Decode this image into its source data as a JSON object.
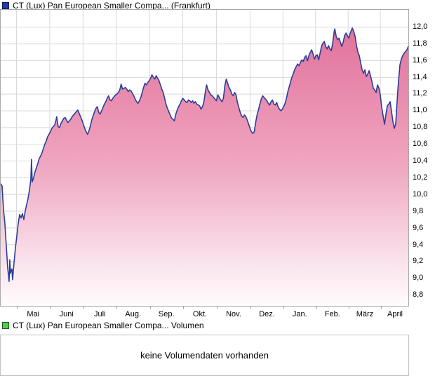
{
  "price_pane": {
    "legend": {
      "label": "CT (Lux) Pan European Smaller Compa... (Frankfurt)",
      "marker_color": "#1f3bad"
    },
    "y_axis": {
      "ticks": [
        "12,0",
        "11,8",
        "11,6",
        "11,4",
        "11,2",
        "11,0",
        "10,8",
        "10,6",
        "10,4",
        "10,2",
        "10,0",
        "9,8",
        "9,6",
        "9,4",
        "9,2",
        "9,0",
        "8,8"
      ]
    },
    "x_axis": {
      "labels": [
        "Mai",
        "Juni",
        "Juli",
        "Aug.",
        "Sep.",
        "Okt.",
        "Nov.",
        "Dez.",
        "Jan.",
        "Feb.",
        "März",
        "April"
      ]
    }
  },
  "volume_pane": {
    "legend": {
      "label": "CT (Lux) Pan European Smaller Compa... Volumen",
      "marker_color": "#58c858"
    },
    "message": "keine Volumendaten vorhanden"
  },
  "colors": {
    "line": "#2b3e99",
    "grid": "#d9d9d9",
    "border": "#a8a8a8",
    "fill_stops": [
      "#e2709b",
      "#efa6c0",
      "#fae3ec",
      "#fffcfd"
    ],
    "fill_offsets": [
      0,
      50,
      85,
      100
    ]
  },
  "chart_data": {
    "type": "area",
    "title": "CT (Lux) Pan European Smaller Compa... (Frankfurt)",
    "xlabel": "",
    "ylabel": "",
    "x_tick_labels": [
      "Mai",
      "Juni",
      "Juli",
      "Aug.",
      "Sep.",
      "Okt.",
      "Nov.",
      "Dez.",
      "Jan.",
      "Feb.",
      "März",
      "April"
    ],
    "y_tick_labels": [
      "12,0",
      "11,8",
      "11,6",
      "11,4",
      "11,2",
      "11,0",
      "10,8",
      "10,6",
      "10,4",
      "10,2",
      "10,0",
      "9,8",
      "9,6",
      "9,4",
      "9,2",
      "9,0",
      "8,8"
    ],
    "ylim": [
      8.668,
      12.208
    ],
    "y_grid_step": 0.2,
    "grid": true,
    "legend_position": "top-left",
    "x_axis_note": "x = horizontal chart position (pixels 0-582) spanning ~13 months, ticks mid-April to mid-April",
    "series": [
      {
        "name": "CT (Lux) Pan European Smaller Compa... (Frankfurt)",
        "color": "#2b3e99",
        "points": [
          [
            0,
            10.13
          ],
          [
            2,
            10.1
          ],
          [
            4,
            9.82
          ],
          [
            6,
            9.65
          ],
          [
            8,
            9.38
          ],
          [
            10,
            9.12
          ],
          [
            12,
            8.96
          ],
          [
            13,
            9.22
          ],
          [
            14,
            9.06
          ],
          [
            16,
            9.11
          ],
          [
            17,
            8.98
          ],
          [
            19,
            9.18
          ],
          [
            21,
            9.36
          ],
          [
            23,
            9.5
          ],
          [
            25,
            9.65
          ],
          [
            27,
            9.76
          ],
          [
            29,
            9.72
          ],
          [
            31,
            9.77
          ],
          [
            33,
            9.7
          ],
          [
            35,
            9.8
          ],
          [
            37,
            9.88
          ],
          [
            39,
            9.95
          ],
          [
            41,
            10.05
          ],
          [
            43,
            10.18
          ],
          [
            44,
            10.42
          ],
          [
            45,
            10.15
          ],
          [
            47,
            10.2
          ],
          [
            49,
            10.27
          ],
          [
            51,
            10.32
          ],
          [
            53,
            10.37
          ],
          [
            55,
            10.43
          ],
          [
            57,
            10.46
          ],
          [
            59,
            10.5
          ],
          [
            61,
            10.55
          ],
          [
            63,
            10.6
          ],
          [
            65,
            10.64
          ],
          [
            67,
            10.69
          ],
          [
            69,
            10.72
          ],
          [
            71,
            10.75
          ],
          [
            73,
            10.79
          ],
          [
            75,
            10.81
          ],
          [
            77,
            10.83
          ],
          [
            79,
            10.89
          ],
          [
            80,
            10.93
          ],
          [
            82,
            10.81
          ],
          [
            84,
            10.8
          ],
          [
            86,
            10.85
          ],
          [
            88,
            10.88
          ],
          [
            90,
            10.91
          ],
          [
            92,
            10.92
          ],
          [
            94,
            10.89
          ],
          [
            96,
            10.86
          ],
          [
            98,
            10.88
          ],
          [
            100,
            10.9
          ],
          [
            102,
            10.93
          ],
          [
            104,
            10.95
          ],
          [
            106,
            10.97
          ],
          [
            108,
            10.99
          ],
          [
            110,
            11.01
          ],
          [
            112,
            10.97
          ],
          [
            114,
            10.93
          ],
          [
            116,
            10.89
          ],
          [
            118,
            10.84
          ],
          [
            120,
            10.79
          ],
          [
            122,
            10.75
          ],
          [
            124,
            10.72
          ],
          [
            126,
            10.76
          ],
          [
            128,
            10.82
          ],
          [
            130,
            10.89
          ],
          [
            132,
            10.94
          ],
          [
            134,
            10.99
          ],
          [
            136,
            11.03
          ],
          [
            138,
            11.05
          ],
          [
            140,
            10.98
          ],
          [
            142,
            10.96
          ],
          [
            144,
            11.0
          ],
          [
            146,
            11.04
          ],
          [
            148,
            11.08
          ],
          [
            150,
            11.11
          ],
          [
            152,
            11.15
          ],
          [
            154,
            11.18
          ],
          [
            156,
            11.13
          ],
          [
            158,
            11.12
          ],
          [
            160,
            11.15
          ],
          [
            162,
            11.17
          ],
          [
            164,
            11.19
          ],
          [
            166,
            11.2
          ],
          [
            168,
            11.22
          ],
          [
            170,
            11.25
          ],
          [
            172,
            11.32
          ],
          [
            174,
            11.26
          ],
          [
            176,
            11.27
          ],
          [
            178,
            11.28
          ],
          [
            180,
            11.26
          ],
          [
            182,
            11.23
          ],
          [
            184,
            11.25
          ],
          [
            186,
            11.24
          ],
          [
            188,
            11.21
          ],
          [
            190,
            11.18
          ],
          [
            192,
            11.14
          ],
          [
            194,
            11.11
          ],
          [
            196,
            11.09
          ],
          [
            198,
            11.12
          ],
          [
            200,
            11.16
          ],
          [
            202,
            11.22
          ],
          [
            204,
            11.28
          ],
          [
            206,
            11.33
          ],
          [
            208,
            11.31
          ],
          [
            210,
            11.34
          ],
          [
            212,
            11.36
          ],
          [
            214,
            11.39
          ],
          [
            216,
            11.43
          ],
          [
            218,
            11.4
          ],
          [
            220,
            11.38
          ],
          [
            222,
            11.42
          ],
          [
            224,
            11.39
          ],
          [
            226,
            11.36
          ],
          [
            228,
            11.31
          ],
          [
            230,
            11.26
          ],
          [
            232,
            11.22
          ],
          [
            234,
            11.15
          ],
          [
            236,
            11.08
          ],
          [
            238,
            11.03
          ],
          [
            240,
            10.99
          ],
          [
            242,
            10.95
          ],
          [
            244,
            10.91
          ],
          [
            246,
            10.9
          ],
          [
            248,
            10.88
          ],
          [
            250,
            10.96
          ],
          [
            252,
            11.01
          ],
          [
            254,
            11.05
          ],
          [
            256,
            11.08
          ],
          [
            258,
            11.12
          ],
          [
            260,
            11.15
          ],
          [
            262,
            11.13
          ],
          [
            264,
            11.11
          ],
          [
            266,
            11.1
          ],
          [
            268,
            11.13
          ],
          [
            270,
            11.12
          ],
          [
            272,
            11.1
          ],
          [
            274,
            11.12
          ],
          [
            276,
            11.09
          ],
          [
            278,
            11.11
          ],
          [
            280,
            11.08
          ],
          [
            282,
            11.07
          ],
          [
            284,
            11.06
          ],
          [
            286,
            11.02
          ],
          [
            288,
            11.05
          ],
          [
            290,
            11.1
          ],
          [
            292,
            11.22
          ],
          [
            294,
            11.31
          ],
          [
            296,
            11.25
          ],
          [
            298,
            11.22
          ],
          [
            300,
            11.19
          ],
          [
            302,
            11.18
          ],
          [
            304,
            11.16
          ],
          [
            306,
            11.14
          ],
          [
            308,
            11.12
          ],
          [
            310,
            11.19
          ],
          [
            312,
            11.16
          ],
          [
            314,
            11.13
          ],
          [
            316,
            11.11
          ],
          [
            318,
            11.15
          ],
          [
            320,
            11.3
          ],
          [
            322,
            11.38
          ],
          [
            324,
            11.33
          ],
          [
            326,
            11.28
          ],
          [
            328,
            11.25
          ],
          [
            330,
            11.2
          ],
          [
            332,
            11.18
          ],
          [
            334,
            11.22
          ],
          [
            336,
            11.19
          ],
          [
            338,
            11.1
          ],
          [
            340,
            11.04
          ],
          [
            342,
            10.98
          ],
          [
            344,
            10.94
          ],
          [
            346,
            10.92
          ],
          [
            348,
            10.95
          ],
          [
            350,
            10.93
          ],
          [
            352,
            10.89
          ],
          [
            354,
            10.84
          ],
          [
            356,
            10.79
          ],
          [
            358,
            10.75
          ],
          [
            360,
            10.73
          ],
          [
            362,
            10.75
          ],
          [
            364,
            10.86
          ],
          [
            366,
            10.95
          ],
          [
            368,
            11.01
          ],
          [
            370,
            11.08
          ],
          [
            372,
            11.14
          ],
          [
            374,
            11.18
          ],
          [
            376,
            11.16
          ],
          [
            378,
            11.14
          ],
          [
            380,
            11.12
          ],
          [
            382,
            11.09
          ],
          [
            384,
            11.07
          ],
          [
            386,
            11.11
          ],
          [
            388,
            11.13
          ],
          [
            390,
            11.08
          ],
          [
            392,
            11.07
          ],
          [
            394,
            11.1
          ],
          [
            396,
            11.05
          ],
          [
            398,
            11.02
          ],
          [
            400,
            11.0
          ],
          [
            402,
            11.02
          ],
          [
            404,
            11.05
          ],
          [
            406,
            11.09
          ],
          [
            408,
            11.15
          ],
          [
            410,
            11.23
          ],
          [
            412,
            11.29
          ],
          [
            414,
            11.35
          ],
          [
            416,
            11.41
          ],
          [
            418,
            11.45
          ],
          [
            420,
            11.5
          ],
          [
            422,
            11.53
          ],
          [
            424,
            11.56
          ],
          [
            426,
            11.54
          ],
          [
            428,
            11.58
          ],
          [
            430,
            11.61
          ],
          [
            432,
            11.59
          ],
          [
            434,
            11.64
          ],
          [
            436,
            11.66
          ],
          [
            438,
            11.6
          ],
          [
            440,
            11.66
          ],
          [
            442,
            11.7
          ],
          [
            444,
            11.73
          ],
          [
            446,
            11.68
          ],
          [
            448,
            11.62
          ],
          [
            450,
            11.66
          ],
          [
            452,
            11.67
          ],
          [
            454,
            11.61
          ],
          [
            456,
            11.69
          ],
          [
            458,
            11.77
          ],
          [
            460,
            11.81
          ],
          [
            462,
            11.83
          ],
          [
            464,
            11.77
          ],
          [
            466,
            11.74
          ],
          [
            468,
            11.78
          ],
          [
            470,
            11.74
          ],
          [
            472,
            11.72
          ],
          [
            474,
            11.81
          ],
          [
            476,
            11.94
          ],
          [
            477,
            11.98
          ],
          [
            479,
            11.89
          ],
          [
            481,
            11.85
          ],
          [
            483,
            11.87
          ],
          [
            485,
            11.82
          ],
          [
            487,
            11.77
          ],
          [
            489,
            11.82
          ],
          [
            491,
            11.9
          ],
          [
            493,
            11.93
          ],
          [
            495,
            11.9
          ],
          [
            497,
            11.87
          ],
          [
            499,
            11.93
          ],
          [
            501,
            11.97
          ],
          [
            502,
            11.99
          ],
          [
            504,
            11.95
          ],
          [
            506,
            11.89
          ],
          [
            508,
            11.78
          ],
          [
            510,
            11.7
          ],
          [
            512,
            11.66
          ],
          [
            514,
            11.57
          ],
          [
            516,
            11.49
          ],
          [
            518,
            11.45
          ],
          [
            520,
            11.49
          ],
          [
            522,
            11.41
          ],
          [
            524,
            11.44
          ],
          [
            526,
            11.48
          ],
          [
            528,
            11.42
          ],
          [
            530,
            11.35
          ],
          [
            532,
            11.27
          ],
          [
            534,
            11.25
          ],
          [
            536,
            11.22
          ],
          [
            538,
            11.31
          ],
          [
            540,
            11.27
          ],
          [
            542,
            11.19
          ],
          [
            544,
            11.04
          ],
          [
            546,
            10.94
          ],
          [
            548,
            10.84
          ],
          [
            550,
            10.96
          ],
          [
            552,
            11.06
          ],
          [
            554,
            11.08
          ],
          [
            556,
            11.11
          ],
          [
            558,
            10.99
          ],
          [
            560,
            10.87
          ],
          [
            562,
            10.79
          ],
          [
            564,
            10.85
          ],
          [
            566,
            11.12
          ],
          [
            568,
            11.36
          ],
          [
            570,
            11.55
          ],
          [
            572,
            11.62
          ],
          [
            574,
            11.66
          ],
          [
            576,
            11.69
          ],
          [
            578,
            11.71
          ],
          [
            580,
            11.73
          ],
          [
            582,
            11.77
          ]
        ]
      }
    ],
    "volume_series": {
      "name": "CT (Lux) Pan European Smaller Compa... Volumen",
      "values": [],
      "empty_message": "keine Volumendaten vorhanden"
    }
  }
}
